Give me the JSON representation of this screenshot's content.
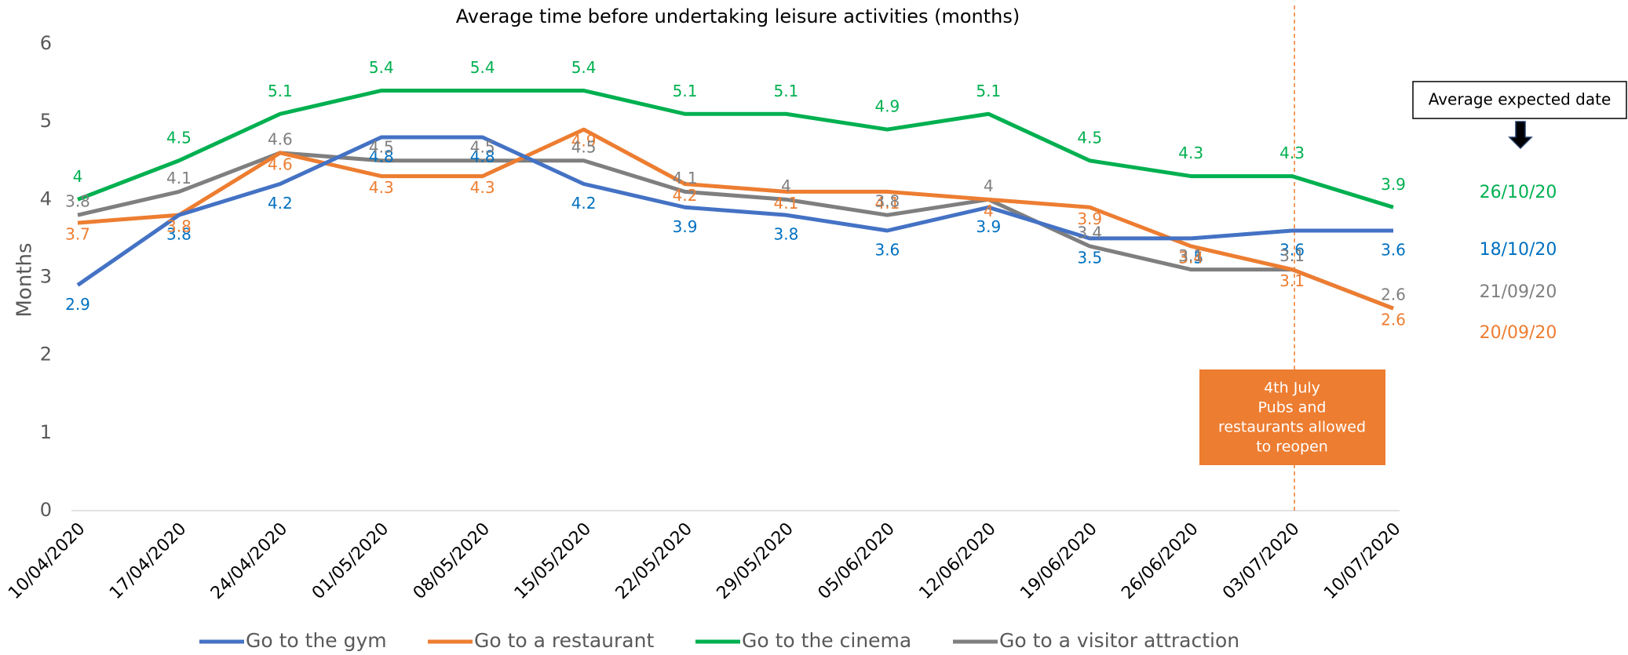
{
  "chart_data": {
    "type": "line",
    "title": "Average time before undertaking leisure activities (months)",
    "y_label": "Months",
    "categories": [
      "10/04/2020",
      "17/04/2020",
      "24/04/2020",
      "01/05/2020",
      "08/05/2020",
      "15/05/2020",
      "22/05/2020",
      "29/05/2020",
      "05/06/2020",
      "12/06/2020",
      "19/06/2020",
      "26/06/2020",
      "03/07/2020",
      "10/07/2020"
    ],
    "series": [
      {
        "name": "Go to the gym",
        "color": "#4472c4",
        "label_color": "#0070c0",
        "expected_date": "18/10/20",
        "values": [
          2.9,
          3.8,
          4.2,
          4.8,
          4.8,
          4.2,
          3.9,
          3.8,
          3.6,
          3.9,
          3.5,
          3.5,
          3.6,
          3.6
        ]
      },
      {
        "name": "Go to a restaurant",
        "color": "#ed7d31",
        "label_color": "#ed7d31",
        "expected_date": "20/09/20",
        "values": [
          3.7,
          3.8,
          4.6,
          4.3,
          4.3,
          4.9,
          4.2,
          4.1,
          4.1,
          4.0,
          3.9,
          3.4,
          3.1,
          2.6
        ]
      },
      {
        "name": "Go to the cinema",
        "color": "#00b050",
        "label_color": "#00b050",
        "expected_date": "26/10/20",
        "values": [
          4.0,
          4.5,
          5.1,
          5.4,
          5.4,
          5.4,
          5.1,
          5.1,
          4.9,
          5.1,
          4.5,
          4.3,
          4.3,
          3.9
        ]
      },
      {
        "name": "Go to a visitor attraction",
        "color": "#7f7f7f",
        "label_color": "#7f7f7f",
        "expected_date": "21/09/20",
        "values": [
          3.8,
          4.1,
          4.6,
          4.5,
          4.5,
          4.5,
          4.1,
          4.0,
          3.8,
          4.0,
          3.4,
          3.1,
          3.1,
          2.6
        ]
      }
    ],
    "ylim": [
      0,
      6
    ],
    "yticks": [
      0,
      1,
      2,
      3,
      4,
      5,
      6
    ],
    "expected_date_title": "Average expected date",
    "event": {
      "category": "03/07/2020",
      "lines": [
        "4th July",
        "Pubs and",
        "restaurants allowed",
        "to reopen"
      ]
    },
    "legend": "bottom"
  }
}
